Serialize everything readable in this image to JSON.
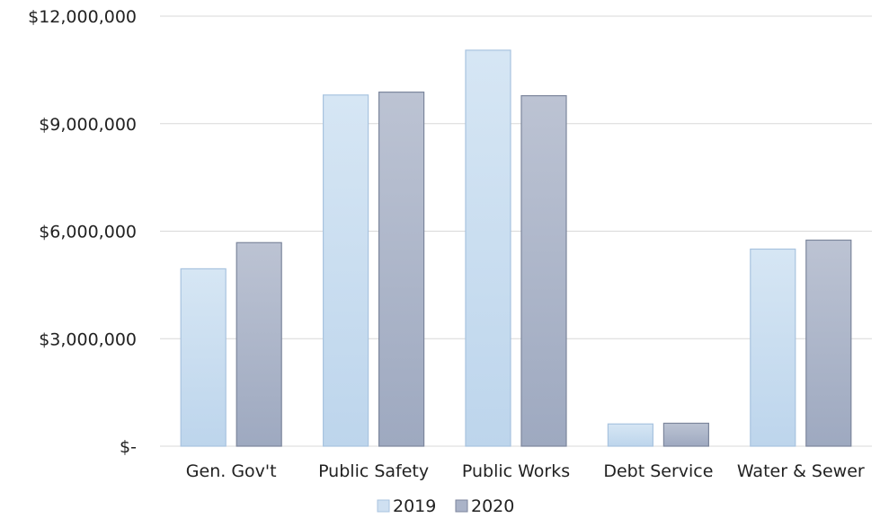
{
  "chart_data": {
    "type": "bar",
    "categories": [
      "Gen. Gov't",
      "Public Safety",
      "Public Works",
      "Debt Service",
      "Water & Sewer"
    ],
    "series": [
      {
        "name": "2019",
        "values": [
          4950000,
          9800000,
          11050000,
          620000,
          5500000
        ],
        "color": "#cfe0f1"
      },
      {
        "name": "2020",
        "values": [
          5680000,
          9880000,
          9780000,
          640000,
          5750000
        ],
        "color": "#aab3c8"
      }
    ],
    "y_tick_labels": [
      "$-",
      "$3,000,000",
      "$6,000,000",
      "$9,000,000",
      "$12,000,000"
    ],
    "ylim": [
      0,
      12000000
    ],
    "grid": true,
    "legend_position": "bottom"
  }
}
